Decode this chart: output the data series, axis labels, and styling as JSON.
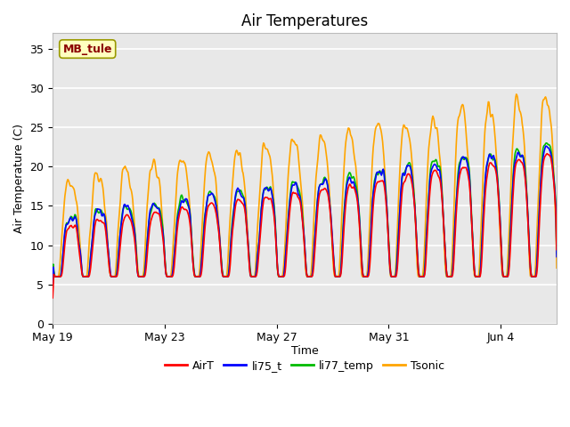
{
  "title": "Air Temperatures",
  "xlabel": "Time",
  "ylabel": "Air Temperature (C)",
  "ylim": [
    0,
    37
  ],
  "yticks": [
    0,
    5,
    10,
    15,
    20,
    25,
    30,
    35
  ],
  "annotation": "MB_tule",
  "colors": {
    "AirT": "#ff0000",
    "li75_t": "#0000ff",
    "li77_temp": "#00bb00",
    "Tsonic": "#ffa500"
  },
  "legend_labels": [
    "AirT",
    "li75_t",
    "li77_temp",
    "Tsonic"
  ],
  "bg_color": "#e8e8e8",
  "grid_color": "#ffffff",
  "xtick_labels": [
    "May 19",
    "May 23",
    "May 27",
    "May 31",
    "Jun 4"
  ],
  "xtick_positions": [
    0,
    4,
    8,
    12,
    16
  ],
  "n_days": 18,
  "pts_per_day": 48
}
